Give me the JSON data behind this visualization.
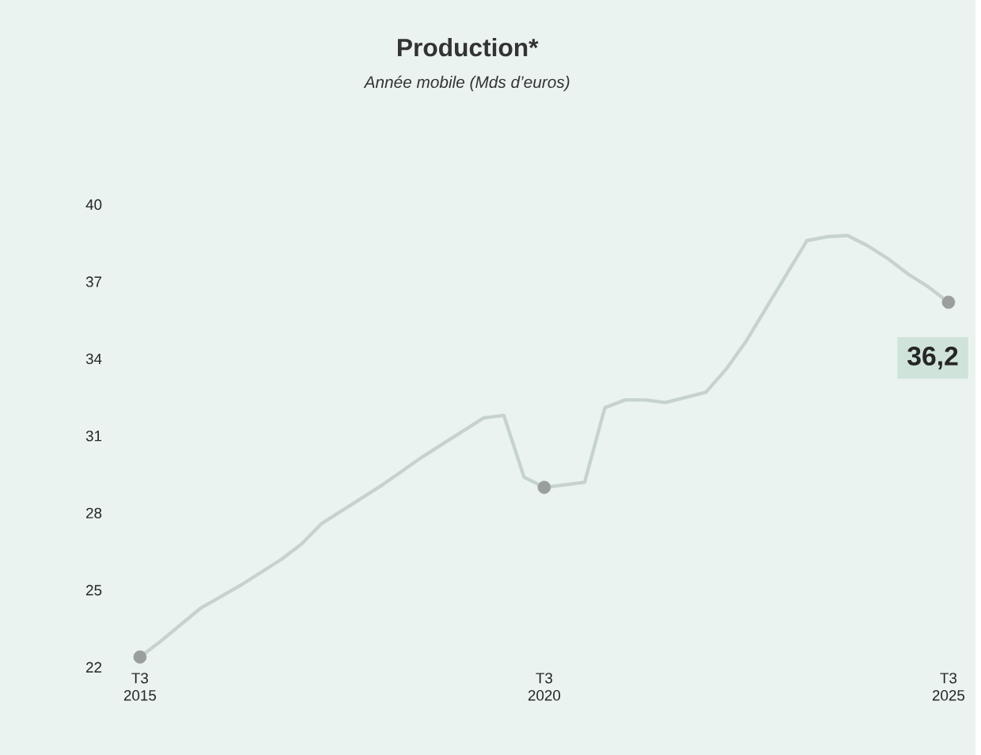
{
  "chart_data": {
    "type": "line",
    "title": "Production*",
    "subtitle": "Année mobile (Mds d’euros)",
    "categories": [
      "T3 2015",
      null,
      null,
      null,
      null,
      null,
      null,
      null,
      null,
      null,
      null,
      null,
      null,
      null,
      null,
      null,
      null,
      null,
      null,
      null,
      "T3 2020",
      null,
      null,
      null,
      null,
      null,
      null,
      null,
      null,
      null,
      null,
      null,
      null,
      null,
      null,
      null,
      null,
      null,
      null,
      null,
      "T3 2025"
    ],
    "ylim": [
      22,
      40
    ],
    "yticks": [
      22,
      25,
      28,
      31,
      34,
      37,
      40
    ],
    "series": [
      {
        "color": "#c6d3cd",
        "values": [
          22.4,
          23.0,
          23.65,
          24.3,
          24.75,
          25.2,
          25.7,
          26.2,
          26.8,
          27.6,
          28.1,
          28.6,
          29.1,
          29.65,
          30.2,
          30.7,
          31.2,
          31.7,
          31.8,
          29.4,
          29.0,
          29.1,
          29.2,
          32.1,
          32.4,
          32.4,
          32.3,
          32.5,
          32.7,
          33.6,
          34.7,
          36.0,
          37.3,
          38.6,
          38.75,
          38.8,
          38.4,
          37.9,
          37.3,
          36.8,
          36.2
        ]
      },
      {
        "type": "scatter",
        "color": "#9a9e9c",
        "marker": "circle",
        "values": [
          22.4,
          null,
          null,
          null,
          null,
          null,
          null,
          null,
          null,
          null,
          null,
          null,
          null,
          null,
          null,
          null,
          null,
          null,
          null,
          null,
          29.0,
          null,
          null,
          null,
          null,
          null,
          null,
          null,
          null,
          null,
          null,
          null,
          null,
          null,
          null,
          null,
          null,
          null,
          null,
          null,
          36.2
        ],
        "value_labels": [
          null,
          null,
          null,
          null,
          null,
          null,
          null,
          null,
          null,
          null,
          null,
          null,
          null,
          null,
          null,
          null,
          null,
          null,
          null,
          null,
          null,
          null,
          null,
          null,
          null,
          null,
          null,
          null,
          null,
          null,
          null,
          null,
          null,
          null,
          null,
          null,
          null,
          null,
          null,
          null,
          "36,2"
        ]
      }
    ]
  }
}
